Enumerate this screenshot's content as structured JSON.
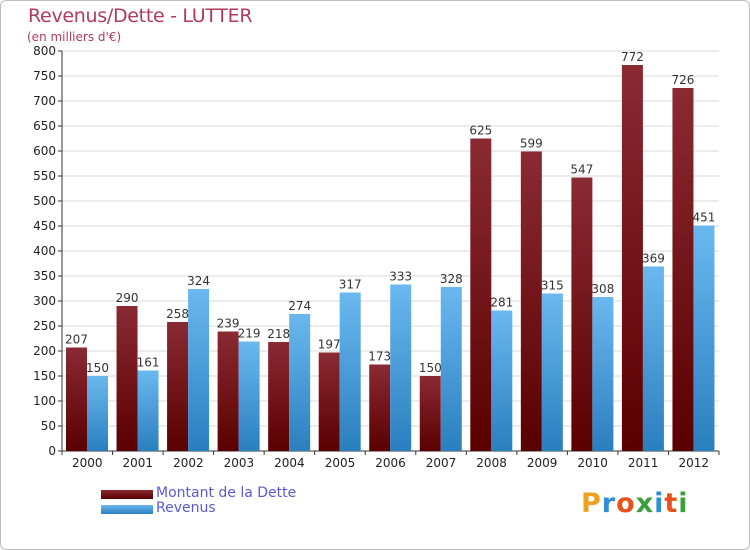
{
  "colors": {
    "debt_top": "#8a2a33",
    "debt_bottom": "#5a0000",
    "revenue_top": "#6ab8ef",
    "revenue_bottom": "#2a7fbf",
    "title": "#b23a5b",
    "legend_text": "#5a5ad6",
    "gridline": "#d8d8d8"
  },
  "logo": {
    "text": "Proxiti",
    "letters": [
      "P",
      "r",
      "o",
      "x",
      "i",
      "t",
      "i"
    ],
    "letter_colors": [
      "#f0a020",
      "#2f8fd6",
      "#e8501c",
      "#3aa03a",
      "#2f8fd6",
      "#e8501c",
      "#3aa03a"
    ]
  },
  "chart_data": {
    "type": "bar",
    "title": "Revenus/Dette - LUTTER",
    "subtitle": "(en milliers d'€)",
    "categories": [
      "2000",
      "2001",
      "2002",
      "2003",
      "2004",
      "2005",
      "2006",
      "2007",
      "2008",
      "2009",
      "2010",
      "2011",
      "2012"
    ],
    "series": [
      {
        "name": "Montant de la Dette",
        "values": [
          207,
          290,
          258,
          239,
          218,
          197,
          173,
          150,
          625,
          599,
          547,
          772,
          726
        ]
      },
      {
        "name": "Revenus",
        "values": [
          150,
          161,
          324,
          219,
          274,
          317,
          333,
          328,
          281,
          315,
          308,
          369,
          451
        ]
      }
    ],
    "ylim": [
      0,
      800
    ],
    "yticks": [
      "0",
      "50",
      "100",
      "150",
      "200",
      "250",
      "300",
      "350",
      "400",
      "450",
      "500",
      "550",
      "600",
      "650",
      "700",
      "750",
      "800"
    ],
    "grid": true,
    "legend_position": "bottom-left"
  }
}
